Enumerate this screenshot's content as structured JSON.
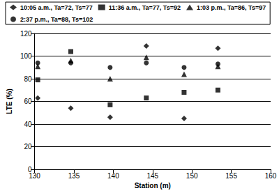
{
  "chart_data": {
    "type": "scatter",
    "x_label": "Station (m)",
    "y_label": "LTE (%)",
    "xlim": [
      130,
      160
    ],
    "xticks": [
      130,
      135,
      140,
      145,
      150,
      155,
      160
    ],
    "ylim": [
      0,
      120
    ],
    "yticks": [
      0,
      20,
      40,
      60,
      80,
      100,
      120
    ],
    "grid": "y",
    "legend": "top",
    "series": [
      {
        "name": "10:05 a.m., Ta=72, Ts=77",
        "color": "#000000",
        "marker": "diamond",
        "x": [
          130.4,
          134.6,
          139.6,
          144.2,
          149,
          153.3
        ],
        "values": [
          63,
          54,
          46,
          109,
          45,
          107
        ]
      },
      {
        "name": "11:36 a.m., Ta=77, Ts=92",
        "color": "#000000",
        "marker": "square",
        "x": [
          130.4,
          134.6,
          139.6,
          144.2,
          149,
          153.3
        ],
        "values": [
          79,
          104,
          57,
          63,
          68,
          70
        ]
      },
      {
        "name": "1:03 p.m., Ta=86, Ts=97",
        "color": "#000000",
        "marker": "triangle",
        "x": [
          130.4,
          134.6,
          139.6,
          144.2,
          149,
          153.3
        ],
        "values": [
          91,
          96,
          80,
          99,
          84,
          91
        ]
      },
      {
        "name": "2:37 p.m., Ta=88, Ts=102",
        "color": "#000000",
        "marker": "circle",
        "x": [
          130.4,
          134.6,
          139.6,
          144.2,
          149,
          153.3
        ],
        "values": [
          94,
          94,
          90,
          94,
          90,
          93
        ]
      }
    ]
  }
}
